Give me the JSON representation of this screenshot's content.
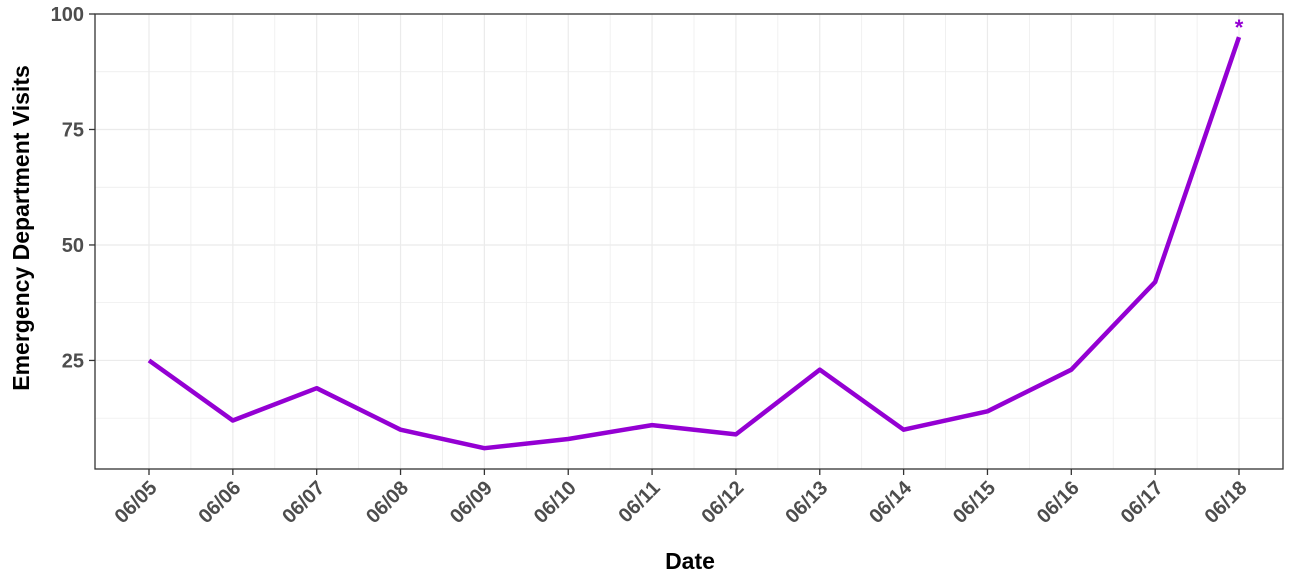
{
  "chart_data": {
    "type": "line",
    "title": "",
    "xlabel": "Date",
    "ylabel": "Emergency Department Visits",
    "categories": [
      "06/05",
      "06/06",
      "06/07",
      "06/08",
      "06/09",
      "06/10",
      "06/11",
      "06/12",
      "06/13",
      "06/14",
      "06/15",
      "06/16",
      "06/17",
      "06/18"
    ],
    "series": [
      {
        "values": [
          25,
          12,
          19,
          10,
          6,
          8,
          11,
          9,
          23,
          10,
          14,
          23,
          42,
          95
        ]
      }
    ],
    "yticks": [
      25,
      50,
      75,
      100
    ],
    "ylim": [
      1.5,
      100
    ],
    "annotations": [
      {
        "category": "06/18",
        "text": "*"
      }
    ],
    "grid": true,
    "legend": "none",
    "colors": {
      "line": "#9400D3",
      "grid": "#ebebeb",
      "panel_border": "#333333",
      "tick_text": "#4d4d4d"
    }
  }
}
